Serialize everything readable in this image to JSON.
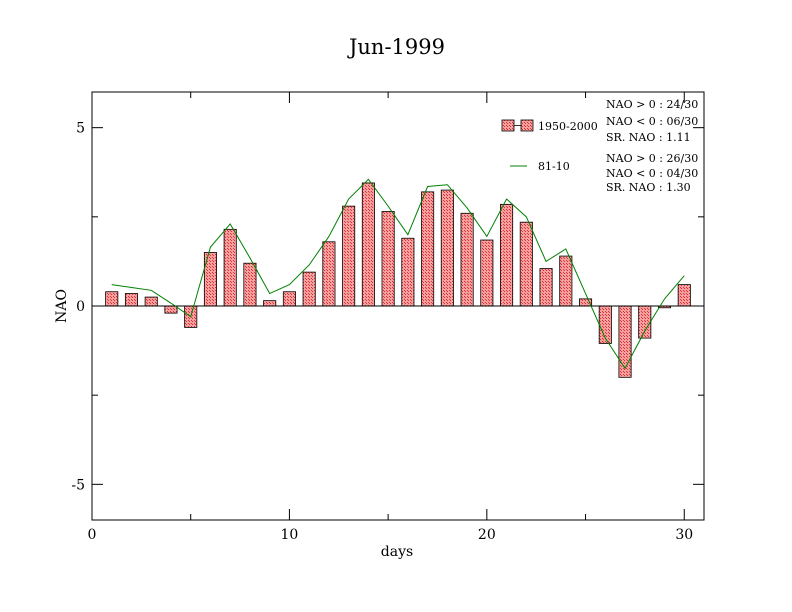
{
  "chart_data": {
    "type": "bar",
    "title": "Jun-1999",
    "xlabel": "days",
    "ylabel": "NAO",
    "xlim": [
      0,
      31
    ],
    "ylim": [
      -6,
      6
    ],
    "xticks": [
      0,
      10,
      20,
      30
    ],
    "yticks": [
      -5,
      0,
      5
    ],
    "grid": false,
    "legend_position": "top-right",
    "series": [
      {
        "name": "1950-2000",
        "kind": "bar",
        "color": "#ff0000",
        "x": [
          1,
          2,
          3,
          4,
          5,
          6,
          7,
          8,
          9,
          10,
          11,
          12,
          13,
          14,
          15,
          16,
          17,
          18,
          19,
          20,
          21,
          22,
          23,
          24,
          25,
          26,
          27,
          28,
          29,
          30
        ],
        "values": [
          0.4,
          0.35,
          0.25,
          -0.2,
          -0.6,
          1.5,
          2.15,
          1.2,
          0.15,
          0.4,
          0.95,
          1.8,
          2.8,
          3.45,
          2.65,
          1.9,
          3.2,
          3.25,
          2.6,
          1.85,
          2.85,
          2.35,
          1.05,
          1.4,
          0.2,
          -1.05,
          -2.0,
          -0.9,
          -0.05,
          0.6
        ]
      },
      {
        "name": "81-10",
        "kind": "line",
        "color": "#008000",
        "x": [
          1,
          2,
          3,
          4,
          5,
          6,
          7,
          8,
          9,
          10,
          11,
          12,
          13,
          14,
          15,
          16,
          17,
          18,
          19,
          20,
          21,
          22,
          23,
          24,
          25,
          26,
          27,
          28,
          29,
          30
        ],
        "values": [
          0.6,
          0.52,
          0.44,
          0.08,
          -0.3,
          1.65,
          2.3,
          1.35,
          0.35,
          0.6,
          1.15,
          1.95,
          3.0,
          3.55,
          2.8,
          2.0,
          3.35,
          3.4,
          2.75,
          1.95,
          3.0,
          2.5,
          1.25,
          1.6,
          0.35,
          -0.9,
          -1.75,
          -0.7,
          0.2,
          0.85
        ]
      }
    ],
    "annotations": {
      "stats_1950_2000": [
        "NAO > 0 : 24/30",
        "NAO < 0 : 06/30",
        "SR. NAO :  1.11"
      ],
      "stats_81_10": [
        "NAO > 0 : 26/30",
        "NAO < 0 : 04/30",
        "SR. NAO :  1.30"
      ]
    }
  }
}
